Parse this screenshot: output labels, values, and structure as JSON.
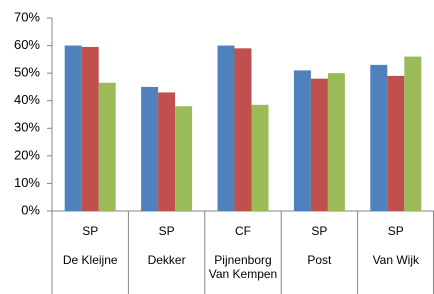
{
  "chart_data": {
    "type": "bar",
    "groups": [
      "SP",
      "SP",
      "CF",
      "SP",
      "SP"
    ],
    "categories": [
      "De Kleijne",
      "Dekker",
      "Pijnenborg Van Kempen",
      "Post",
      "Van Wijk"
    ],
    "series": [
      {
        "color": "#4f81bd",
        "values": [
          60,
          45,
          60,
          51,
          53
        ]
      },
      {
        "color": "#c0504d",
        "values": [
          59.5,
          43,
          59,
          48,
          49
        ]
      },
      {
        "color": "#9bbb59",
        "values": [
          46.5,
          38,
          38.5,
          50,
          56
        ]
      }
    ],
    "ylim": [
      0,
      70
    ],
    "yticks": [
      {
        "value": 0,
        "label": "0%"
      },
      {
        "value": 10,
        "label": "10%"
      },
      {
        "value": 20,
        "label": "20%"
      },
      {
        "value": 30,
        "label": "30%"
      },
      {
        "value": 40,
        "label": "40%"
      },
      {
        "value": 50,
        "label": "50%"
      },
      {
        "value": 60,
        "label": "60%"
      },
      {
        "value": 70,
        "label": "70%"
      }
    ],
    "grid": false
  }
}
